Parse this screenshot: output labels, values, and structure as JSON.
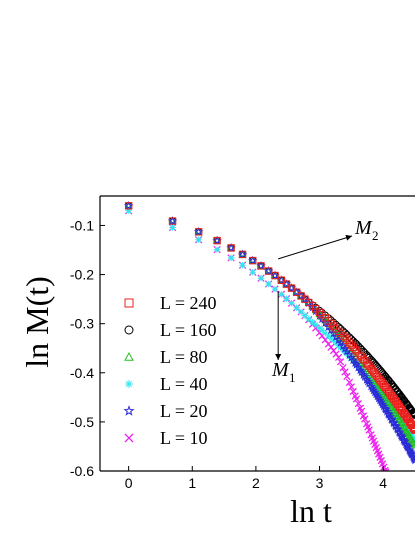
{
  "chart_data": {
    "type": "scatter",
    "xlabel": "ln t",
    "ylabel": "ln M(t)",
    "xlim": [
      -0.45,
      4.5
    ],
    "ylim": [
      -0.6,
      -0.04
    ],
    "xticks": [
      0,
      1,
      2,
      3,
      4
    ],
    "xtick_labels": [
      "0",
      "1",
      "2",
      "3",
      "4"
    ],
    "yticks": [
      -0.1,
      -0.2,
      -0.3,
      -0.4,
      -0.5,
      -0.6
    ],
    "ytick_labels": [
      "-0.1",
      "-0.2",
      "-0.3",
      "-0.4",
      "-0.5",
      "-0.6"
    ],
    "legend_position": "left",
    "annotations": [
      {
        "label": "M",
        "subscript": "2",
        "points_to": [
          2.35,
          -0.168
        ]
      },
      {
        "label": "M",
        "subscript": "1",
        "points_to": [
          2.35,
          -0.218
        ]
      }
    ],
    "curves": [
      {
        "id": "M2",
        "x0": 0.0,
        "y0": -0.06,
        "a": -0.0408,
        "b": 0.03
      },
      {
        "id": "M1",
        "x0": 0.0,
        "y0": -0.07,
        "a": -0.0443,
        "b": 0.042
      }
    ],
    "series": [
      {
        "name": "L = 240",
        "legend_label": "L = 240",
        "marker": "square",
        "color": "#e8201e",
        "x": [
          0.0,
          0.69,
          1.1,
          1.39,
          1.61,
          1.79,
          1.95,
          2.08,
          2.2,
          2.3,
          2.4,
          2.48,
          2.56,
          2.64,
          2.71,
          2.77,
          2.83,
          2.89,
          2.94,
          3.0,
          3.04,
          3.09,
          3.14,
          3.18,
          3.22,
          3.26,
          3.3,
          3.33,
          3.37,
          3.4,
          3.43,
          3.47,
          3.5,
          3.53,
          3.56,
          3.58,
          3.61,
          3.64,
          3.66,
          3.69,
          3.71,
          3.74,
          3.76,
          3.78,
          3.81,
          3.83,
          3.85,
          3.87,
          3.89,
          3.91,
          3.93,
          3.95,
          3.97,
          3.99,
          4.01,
          4.03,
          4.04,
          4.06,
          4.08,
          4.09,
          4.11,
          4.13,
          4.14,
          4.16,
          4.17,
          4.19,
          4.2,
          4.22,
          4.23,
          4.25,
          4.26,
          4.28,
          4.29,
          4.3,
          4.32,
          4.33,
          4.34,
          4.36,
          4.37,
          4.38,
          4.39,
          4.41,
          4.42,
          4.43,
          4.44,
          4.45,
          4.47,
          4.48,
          4.49,
          4.5
        ],
        "group": "M2"
      },
      {
        "name": "L = 160",
        "legend_label": "L = 160",
        "marker": "circle",
        "color": "#000000",
        "group": "M2"
      },
      {
        "name": "L = 80",
        "legend_label": "L = 80",
        "marker": "triangle",
        "color": "#22c022",
        "group": "M2"
      },
      {
        "name": "L = 40",
        "legend_label": "L = 40",
        "marker": "asterisk",
        "color": "#2ee8f0",
        "group": "M1"
      },
      {
        "name": "L = 20",
        "legend_label": "L = 20",
        "marker": "star",
        "color": "#2b2bd6",
        "group": "M2"
      },
      {
        "name": "L = 10",
        "legend_label": "L = 10",
        "marker": "cross",
        "color": "#ee22ee",
        "group": "M1"
      }
    ]
  }
}
